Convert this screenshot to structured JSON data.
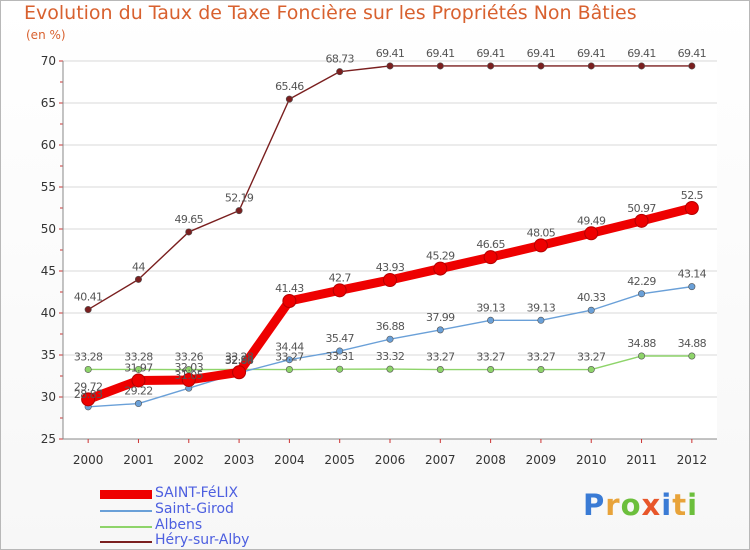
{
  "chart_data": {
    "type": "line",
    "title": "Evolution du Taux de Taxe Foncière sur les Propriétés Non Bâties",
    "subtitle": "(en %)",
    "categories": [
      "2000",
      "2001",
      "2002",
      "2003",
      "2004",
      "2005",
      "2006",
      "2007",
      "2008",
      "2009",
      "2010",
      "2011",
      "2012"
    ],
    "y_ticks": [
      "25",
      "30",
      "35",
      "40",
      "45",
      "50",
      "55",
      "60",
      "65",
      "70"
    ],
    "ylim": [
      25,
      70
    ],
    "grid": "horizontal",
    "legend_position": "bottom-left",
    "series": [
      {
        "name": "Héry-sur-Alby",
        "color": "#7a1f1f",
        "values": [
          40.41,
          44,
          49.65,
          52.19,
          65.46,
          68.73,
          69.41,
          69.41,
          69.41,
          69.41,
          69.41,
          69.41,
          69.41
        ],
        "labels": [
          "40.41",
          "44",
          "49.65",
          "52.19",
          "65.46",
          "68.73",
          "69.41",
          "69.41",
          "69.41",
          "69.41",
          "69.41",
          "69.41",
          "69.41"
        ]
      },
      {
        "name": "Albens",
        "color": "#8ed46a",
        "values": [
          33.28,
          33.28,
          33.26,
          33.28,
          33.27,
          33.31,
          33.32,
          33.27,
          33.27,
          33.27,
          33.27,
          34.88,
          34.88
        ],
        "labels": [
          "33.28",
          "33.28",
          "33.26",
          "33.28",
          "33.27",
          "33.31",
          "33.32",
          "33.27",
          "33.27",
          "33.27",
          "33.27",
          "34.88",
          "34.88"
        ]
      },
      {
        "name": "Saint-Girod",
        "color": "#6aa0d8",
        "values": [
          28.83,
          29.22,
          31.05,
          32.88,
          34.44,
          35.47,
          36.88,
          37.99,
          39.13,
          39.13,
          40.33,
          42.29,
          43.14
        ],
        "labels": [
          "28.83",
          "29.22",
          "31.05",
          "32.88",
          "34.44",
          "35.47",
          "36.88",
          "37.99",
          "39.13",
          "39.13",
          "40.33",
          "42.29",
          "43.14"
        ]
      },
      {
        "name": "SAINT-FéLIX",
        "color": "#ee0000",
        "values": [
          29.72,
          31.97,
          32.03,
          32.94,
          41.43,
          42.7,
          43.93,
          45.29,
          46.65,
          48.05,
          49.49,
          50.97,
          52.5
        ],
        "labels": [
          "29.72",
          "31.97",
          "32.03",
          "32.94",
          "41.43",
          "42.7",
          "43.93",
          "45.29",
          "46.65",
          "48.05",
          "49.49",
          "50.97",
          "52.5"
        ]
      }
    ]
  },
  "legend": {
    "items": [
      {
        "label": "SAINT-FéLIX",
        "color": "#ee0000"
      },
      {
        "label": "Saint-Girod",
        "color": "#6aa0d8"
      },
      {
        "label": "Albens",
        "color": "#8ed46a"
      },
      {
        "label": "Héry-sur-Alby",
        "color": "#7a1f1f"
      }
    ]
  },
  "brand": {
    "letters": [
      "P",
      "r",
      "o",
      "x",
      "i",
      "t",
      "i"
    ],
    "colors": [
      "#3a7bd5",
      "#e8a33a",
      "#6cbf3c",
      "#e8562a",
      "#3a7bd5",
      "#e8a33a",
      "#6cbf3c"
    ]
  }
}
